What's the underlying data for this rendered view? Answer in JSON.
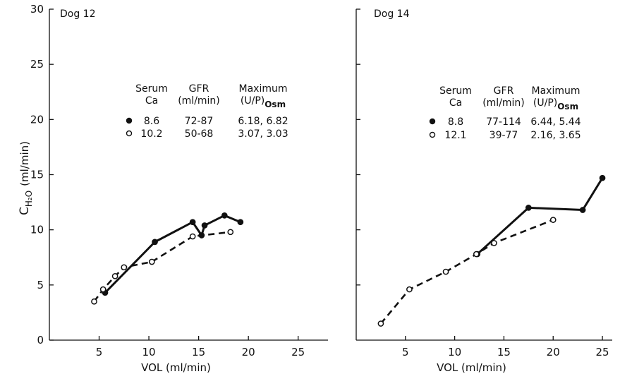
{
  "chart_data": [
    {
      "type": "line",
      "title": "Dog 12",
      "xlabel": "VOL (ml/min)",
      "ylabel": "C",
      "ylabel_sub": "H₂O",
      "ylabel_units": "(ml/min)",
      "xlim": [
        0,
        28
      ],
      "ylim": [
        0,
        30
      ],
      "xticks": [
        5,
        10,
        15,
        20,
        25
      ],
      "yticks": [
        0,
        5,
        10,
        15,
        20,
        25,
        30
      ],
      "show_y_tick_labels": true,
      "grid": false,
      "legend": {
        "headers": [
          {
            "line1": "Serum",
            "line2": "Ca"
          },
          {
            "line1": "GFR",
            "line2": "(ml/min)"
          },
          {
            "line1": "Maximum",
            "line2": "(U/P)",
            "line2_sub": "Osm"
          }
        ],
        "rows": [
          {
            "marker": "filled",
            "ca": "8.6",
            "gfr": "72-87",
            "max": "6.18, 6.82"
          },
          {
            "marker": "open",
            "ca": "10.2",
            "gfr": "50-68",
            "max": "3.07, 3.03"
          }
        ]
      },
      "series": [
        {
          "marker": "filled",
          "line": "solid",
          "color": "#111111",
          "x": [
            5.6,
            10.6,
            14.4,
            15.3,
            15.6,
            17.6,
            19.2
          ],
          "y": [
            4.3,
            8.9,
            10.7,
            9.5,
            10.4,
            11.3,
            10.7
          ]
        },
        {
          "marker": "open",
          "line": "dashed",
          "color": "#111111",
          "x": [
            4.5,
            5.4,
            6.6,
            7.5,
            10.3,
            14.4,
            18.2
          ],
          "y": [
            3.5,
            4.6,
            5.8,
            6.6,
            7.1,
            9.4,
            9.8
          ]
        }
      ]
    },
    {
      "type": "line",
      "title": "Dog  14",
      "xlabel": "VOL (ml/min)",
      "ylabel": "",
      "xlim": [
        0,
        26
      ],
      "ylim": [
        0,
        30
      ],
      "xticks": [
        5,
        10,
        15,
        20,
        25
      ],
      "yticks": [
        5,
        10,
        15,
        20,
        25,
        30
      ],
      "show_y_tick_labels": false,
      "grid": false,
      "legend": {
        "headers": [
          {
            "line1": "Serum",
            "line2": "Ca"
          },
          {
            "line1": "GFR",
            "line2": "(ml/min)"
          },
          {
            "line1": "Maximum",
            "line2": "(U/P)",
            "line2_sub": "Osm"
          }
        ],
        "rows": [
          {
            "marker": "filled",
            "ca": "8.8",
            "gfr": "77-114",
            "max": "6.44, 5.44"
          },
          {
            "marker": "open",
            "ca": "12.1",
            "gfr": "39-77",
            "max": "2.16, 3.65"
          }
        ]
      },
      "series": [
        {
          "marker": "filled",
          "line": "solid",
          "color": "#111111",
          "x": [
            12.3,
            17.5,
            23.0,
            25.0
          ],
          "y": [
            7.8,
            12.0,
            11.8,
            14.7
          ]
        },
        {
          "marker": "open",
          "line": "dashed",
          "color": "#111111",
          "x": [
            2.5,
            5.4,
            9.1,
            12.2,
            14.0,
            20.0
          ],
          "y": [
            1.5,
            4.6,
            6.2,
            7.8,
            8.8,
            10.9
          ]
        }
      ]
    }
  ]
}
